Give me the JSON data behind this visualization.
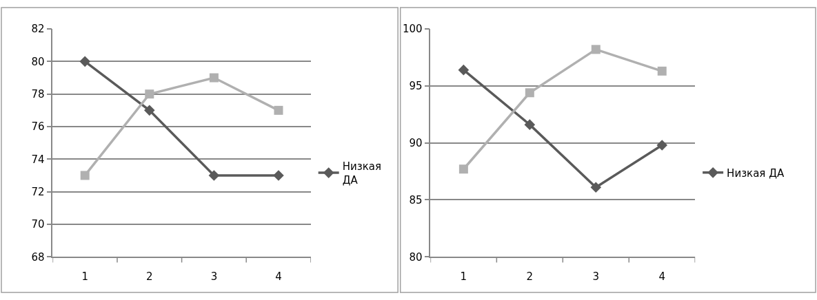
{
  "chart_data": [
    {
      "type": "line",
      "categories": [
        "1",
        "2",
        "3",
        "4"
      ],
      "ylim": [
        68,
        82
      ],
      "yticks": [
        68,
        70,
        72,
        74,
        76,
        78,
        80,
        82
      ],
      "grid": "y",
      "legend": "right",
      "series": [
        {
          "name": "Низкая ДА",
          "color": "#5a5a5a",
          "marker": "diamond",
          "values": [
            80,
            77,
            73,
            73
          ]
        },
        {
          "color": "#b0b0b0",
          "marker": "square",
          "values": [
            73,
            78,
            79,
            77
          ]
        }
      ]
    },
    {
      "type": "line",
      "categories": [
        "1",
        "2",
        "3",
        "4"
      ],
      "ylim": [
        80,
        100
      ],
      "yticks": [
        80,
        85,
        90,
        95,
        100
      ],
      "grid": "y",
      "legend": "right",
      "series": [
        {
          "name": "Низкая ДА",
          "color": "#5a5a5a",
          "marker": "diamond",
          "values": [
            96.4,
            91.6,
            86.1,
            89.8
          ]
        },
        {
          "color": "#b0b0b0",
          "marker": "square",
          "values": [
            87.7,
            94.4,
            98.2,
            96.3
          ]
        }
      ]
    }
  ]
}
